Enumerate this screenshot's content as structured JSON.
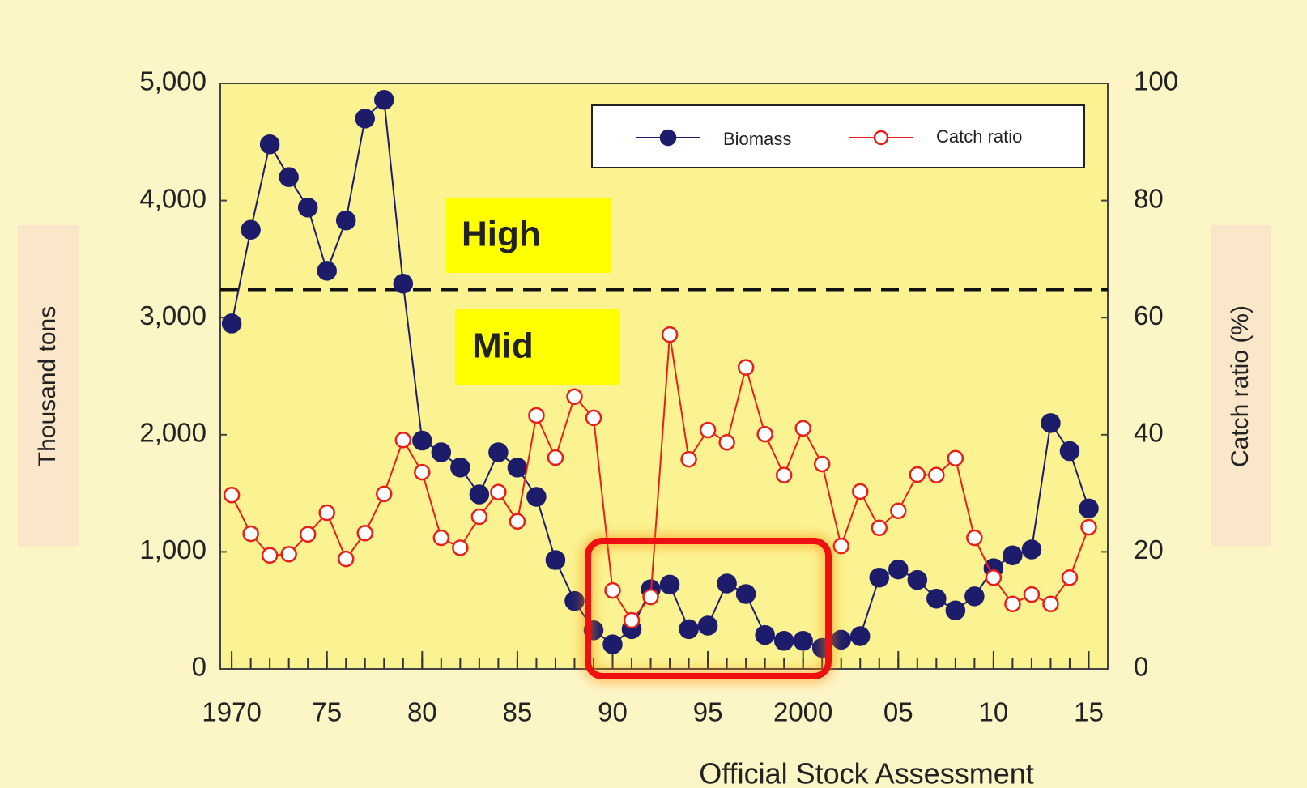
{
  "chart_data": {
    "type": "line",
    "x": [
      1970,
      1971,
      1972,
      1973,
      1974,
      1975,
      1976,
      1977,
      1978,
      1979,
      1980,
      1981,
      1982,
      1983,
      1984,
      1985,
      1986,
      1987,
      1988,
      1989,
      1990,
      1991,
      1992,
      1993,
      1994,
      1995,
      1996,
      1997,
      1998,
      1999,
      2000,
      2001,
      2002,
      2003,
      2004,
      2005,
      2006,
      2007,
      2008,
      2009,
      2010,
      2011,
      2012,
      2013,
      2014,
      2015
    ],
    "series": [
      {
        "name": "Biomass",
        "color": "#1c1c6b",
        "axis": "y",
        "marker": "filled",
        "values": [
          2950,
          3750,
          4480,
          4200,
          3940,
          3400,
          3830,
          4700,
          4860,
          3290,
          1950,
          1850,
          1720,
          1490,
          1850,
          1720,
          1470,
          930,
          580,
          330,
          210,
          340,
          680,
          720,
          340,
          370,
          730,
          640,
          290,
          240,
          240,
          180,
          250,
          280,
          780,
          850,
          760,
          600,
          500,
          620,
          860,
          970,
          1020,
          2100,
          1860,
          1370
        ]
      },
      {
        "name": "Catch ratio",
        "color": "#e8201c",
        "axis": "y2",
        "marker": "hollow",
        "values": [
          29.7,
          23.1,
          19.4,
          19.6,
          23.0,
          26.7,
          18.8,
          23.2,
          29.9,
          39.1,
          33.6,
          22.4,
          20.7,
          26.0,
          30.2,
          25.2,
          43.3,
          36.1,
          46.5,
          42.9,
          13.4,
          8.3,
          12.3,
          57.1,
          35.8,
          40.8,
          38.7,
          51.5,
          40.1,
          33.1,
          41.1,
          35.0,
          21.0,
          30.3,
          24.1,
          27.0,
          33.2,
          33.1,
          36.0,
          22.4,
          15.6,
          11.1,
          12.7,
          11.1,
          15.6,
          24.2
        ]
      }
    ],
    "xlim": [
      1969.4,
      2016
    ],
    "xticks": [
      {
        "value": 1970,
        "label": "1970"
      },
      {
        "value": 1975,
        "label": "75"
      },
      {
        "value": 1980,
        "label": "80"
      },
      {
        "value": 1985,
        "label": "85"
      },
      {
        "value": 1990,
        "label": "90"
      },
      {
        "value": 1995,
        "label": "95"
      },
      {
        "value": 2000,
        "label": "2000"
      },
      {
        "value": 2005,
        "label": "05"
      },
      {
        "value": 2010,
        "label": "10"
      },
      {
        "value": 2015,
        "label": "15"
      }
    ],
    "ylim": [
      0,
      5000
    ],
    "yticks": [
      0,
      {
        "value": 1000,
        "label": "1,000"
      },
      {
        "value": 2000,
        "label": "2,000"
      },
      {
        "value": 3000,
        "label": "3,000"
      },
      {
        "value": 4000,
        "label": "4,000"
      },
      {
        "value": 5000,
        "label": "5,000"
      }
    ],
    "y2lim": [
      0,
      100
    ],
    "y2ticks": [
      0,
      20,
      40,
      60,
      80,
      100
    ],
    "ylabel": "Thousand tons",
    "y2label": "Catch ratio (%)",
    "threshold": 3240,
    "annotations": [
      "High",
      "Mid"
    ],
    "source": "Official Stock Assessment"
  }
}
